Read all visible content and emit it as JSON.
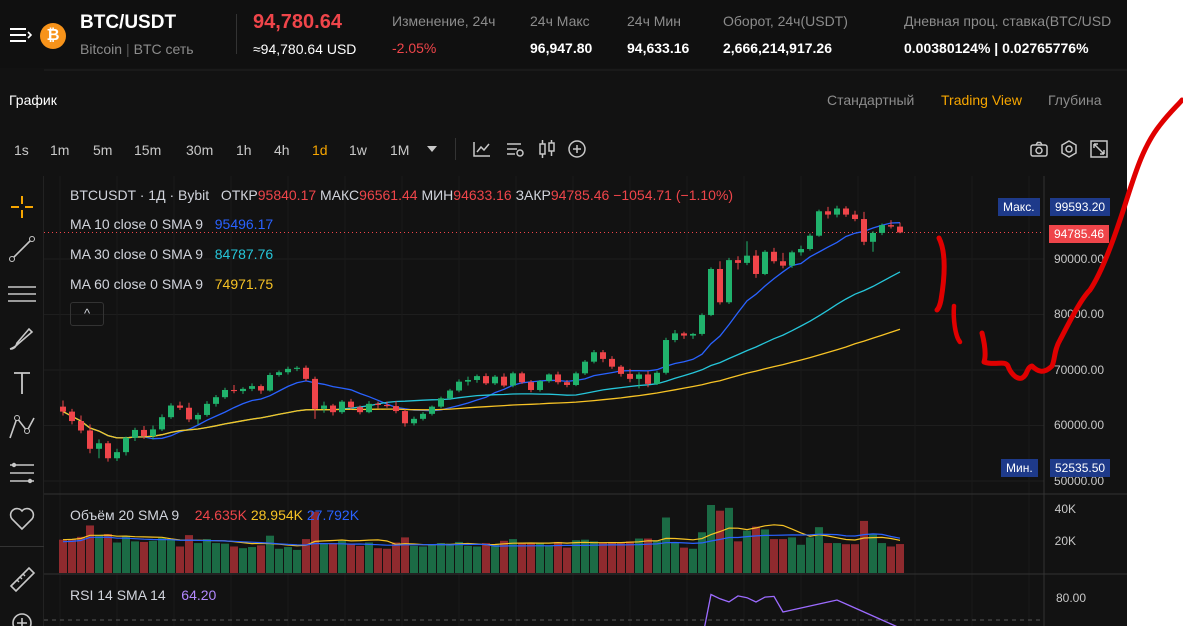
{
  "ticker": {
    "pair": "BTC/USDT",
    "coin_name": "Bitcoin",
    "network": "BTC сеть",
    "last_price": "94,780.64",
    "last_price_usd": "≈94,780.64 USD",
    "stats": [
      {
        "label": "Изменение, 24ч",
        "value": "-2.05%",
        "negative": true
      },
      {
        "label": "24ч Макс",
        "value": "96,947.80",
        "negative": false
      },
      {
        "label": "24ч Мин",
        "value": "94,633.16",
        "negative": false
      },
      {
        "label": "Оборот, 24ч(USDT)",
        "value": "2,666,214,917.26",
        "negative": false
      },
      {
        "label": "Дневная проц. ставка(BTC/USD",
        "value": "0.00380124% | 0.02765776%",
        "negative": false
      }
    ]
  },
  "chart_header": {
    "title": "График",
    "views": [
      "Стандартный",
      "Trading View",
      "Глубина"
    ],
    "active_view": "Trading View"
  },
  "toolbar": {
    "timeframes": [
      "1s",
      "1m",
      "5m",
      "15m",
      "30m",
      "1h",
      "4h",
      "1d",
      "1w",
      "1M"
    ],
    "active_timeframe": "1d",
    "icons": [
      "dropdown-arrow-icon",
      "indicators-icon",
      "chart-settings-icon",
      "candle-style-icon",
      "add-icon",
      "camera-icon",
      "settings-icon",
      "fullscreen-icon"
    ]
  },
  "drawing_tools": [
    "crosshair-icon",
    "trend-line-icon",
    "horizontal-lines-icon",
    "brush-icon",
    "text-icon",
    "pattern-icon",
    "fib-icon",
    "heart-icon",
    "ruler-icon",
    "zoom-in-icon"
  ],
  "legend": {
    "symbol": "BTCUSDT · 1Д · Bybit",
    "open_label": "ОТКР",
    "open": "95840.17",
    "high_label": "МАКС",
    "high": "96561.44",
    "low_label": "МИН",
    "low": "94633.16",
    "close_label": "ЗАКР",
    "close": "94785.46",
    "change": "−1054.71 (−1.10%)",
    "ma": [
      {
        "label": "MA 10 close 0 SMA 9",
        "value": "95496.17",
        "color": "#2962ff"
      },
      {
        "label": "MA 30 close 0 SMA 9",
        "value": "84787.76",
        "color": "#26c6da"
      },
      {
        "label": "MA 60 close 0 SMA 9",
        "value": "74971.75",
        "color": "#f7c325"
      }
    ],
    "collapse": "^"
  },
  "price_axis": {
    "ticks": [
      "90000.00",
      "80000.00",
      "70000.00",
      "60000.00",
      "50000.00"
    ],
    "max_label": "Макс.",
    "max_value": "99593.20",
    "min_label": "Мин.",
    "min_value": "52535.50",
    "current": "94785.46"
  },
  "volume": {
    "legend": "Объём 20 SMA 9",
    "values": [
      "24.635K",
      "28.954K",
      "27.792K"
    ],
    "value_colors": [
      "#ef454a",
      "#f7c325",
      "#2962ff"
    ],
    "ticks": [
      "40K",
      "20K"
    ]
  },
  "rsi": {
    "legend": "RSI 14 SMA 14",
    "value": "64.20",
    "tick": "80.00"
  },
  "colors": {
    "up": "#20b26c",
    "down": "#ef454a",
    "accent": "#f7a600",
    "bg": "#121212"
  },
  "chart_data": {
    "type": "candlestick",
    "x_unit": "day",
    "price_range": [
      50000,
      100000
    ],
    "candles": [
      [
        63400,
        64500,
        61800,
        62500
      ],
      [
        62500,
        63000,
        60200,
        60800
      ],
      [
        60800,
        61800,
        58600,
        59100
      ],
      [
        59100,
        60200,
        55000,
        55800
      ],
      [
        55800,
        57500,
        54100,
        56800
      ],
      [
        56800,
        57200,
        53500,
        54100
      ],
      [
        54100,
        55800,
        53600,
        55200
      ],
      [
        55200,
        58000,
        54600,
        57800
      ],
      [
        57800,
        59600,
        57200,
        59200
      ],
      [
        59200,
        59900,
        57600,
        58100
      ],
      [
        58100,
        60000,
        57500,
        59300
      ],
      [
        59300,
        62000,
        59000,
        61500
      ],
      [
        61500,
        64000,
        61200,
        63600
      ],
      [
        63600,
        64300,
        62800,
        63200
      ],
      [
        63200,
        64100,
        60600,
        61100
      ],
      [
        61100,
        62300,
        60200,
        61900
      ],
      [
        61900,
        64400,
        61600,
        63900
      ],
      [
        63900,
        65500,
        63400,
        65100
      ],
      [
        65100,
        66800,
        64800,
        66400
      ],
      [
        66400,
        67300,
        65800,
        66200
      ],
      [
        66200,
        66900,
        65700,
        66600
      ],
      [
        66600,
        67600,
        66200,
        67100
      ],
      [
        67100,
        67400,
        65700,
        66300
      ],
      [
        66300,
        69500,
        66100,
        69100
      ],
      [
        69100,
        69900,
        68800,
        69600
      ],
      [
        69600,
        70600,
        69200,
        70200
      ],
      [
        70200,
        70700,
        69800,
        70400
      ],
      [
        70400,
        70800,
        68000,
        68400
      ],
      [
        68400,
        68800,
        61200,
        63000
      ],
      [
        63000,
        64300,
        62300,
        63600
      ],
      [
        63600,
        63900,
        61800,
        62400
      ],
      [
        62400,
        64600,
        62100,
        64300
      ],
      [
        64300,
        64800,
        62900,
        63300
      ],
      [
        63300,
        63600,
        62000,
        62400
      ],
      [
        62400,
        64400,
        62200,
        63900
      ],
      [
        63900,
        64300,
        63100,
        63700
      ],
      [
        63700,
        64300,
        63200,
        63500
      ],
      [
        63500,
        64400,
        62200,
        62600
      ],
      [
        62600,
        62900,
        59800,
        60400
      ],
      [
        60400,
        61600,
        60000,
        61200
      ],
      [
        61200,
        62400,
        60900,
        62100
      ],
      [
        62100,
        63600,
        61800,
        63400
      ],
      [
        63400,
        65200,
        63100,
        64900
      ],
      [
        64900,
        66600,
        64600,
        66300
      ],
      [
        66300,
        68300,
        66000,
        67900
      ],
      [
        67900,
        68800,
        67200,
        68200
      ],
      [
        68200,
        69200,
        67700,
        68900
      ],
      [
        68900,
        69400,
        67300,
        67600
      ],
      [
        67600,
        69100,
        67300,
        68800
      ],
      [
        68800,
        69400,
        66900,
        67200
      ],
      [
        67200,
        69700,
        66900,
        69400
      ],
      [
        69400,
        69700,
        67500,
        67800
      ],
      [
        67800,
        68200,
        66000,
        66400
      ],
      [
        66400,
        68200,
        66100,
        68000
      ],
      [
        68000,
        69400,
        67700,
        69200
      ],
      [
        69200,
        69700,
        67400,
        67800
      ],
      [
        67800,
        68200,
        66900,
        67300
      ],
      [
        67300,
        69700,
        67100,
        69400
      ],
      [
        69400,
        71800,
        69100,
        71500
      ],
      [
        71500,
        73600,
        71200,
        73200
      ],
      [
        73200,
        73600,
        71400,
        72000
      ],
      [
        72000,
        72500,
        70200,
        70600
      ],
      [
        70600,
        70900,
        68800,
        69300
      ],
      [
        69300,
        70200,
        67800,
        68400
      ],
      [
        68400,
        69600,
        66700,
        69200
      ],
      [
        69200,
        69800,
        66900,
        67500
      ],
      [
        67500,
        69800,
        67300,
        69500
      ],
      [
        69500,
        75800,
        69200,
        75400
      ],
      [
        75400,
        77200,
        75000,
        76600
      ],
      [
        76600,
        76900,
        75600,
        76200
      ],
      [
        76200,
        76700,
        75600,
        76500
      ],
      [
        76500,
        80200,
        76200,
        79900
      ],
      [
        79900,
        88500,
        79700,
        88200
      ],
      [
        88200,
        89600,
        81800,
        82200
      ],
      [
        82200,
        90200,
        81900,
        89800
      ],
      [
        89800,
        90500,
        88100,
        89300
      ],
      [
        89300,
        93200,
        88900,
        90600
      ],
      [
        90600,
        91600,
        86600,
        87300
      ],
      [
        87300,
        91600,
        87100,
        91300
      ],
      [
        91300,
        92000,
        89200,
        89600
      ],
      [
        89600,
        91100,
        88300,
        88800
      ],
      [
        88800,
        91500,
        88400,
        91200
      ],
      [
        91200,
        92400,
        90600,
        91800
      ],
      [
        91800,
        94600,
        91500,
        94200
      ],
      [
        94200,
        98900,
        94000,
        98600
      ],
      [
        98600,
        99400,
        97300,
        98000
      ],
      [
        98000,
        99600,
        97500,
        99100
      ],
      [
        99100,
        99500,
        97600,
        98000
      ],
      [
        98000,
        98700,
        96800,
        97200
      ],
      [
        97200,
        98500,
        92500,
        93100
      ],
      [
        93100,
        95000,
        91300,
        94700
      ],
      [
        94700,
        96400,
        94300,
        96100
      ],
      [
        96100,
        97000,
        95500,
        95840
      ],
      [
        95840,
        96561,
        94633,
        94785
      ]
    ],
    "volume_ticks": [
      20000,
      40000
    ],
    "rsi_tick": 80
  }
}
